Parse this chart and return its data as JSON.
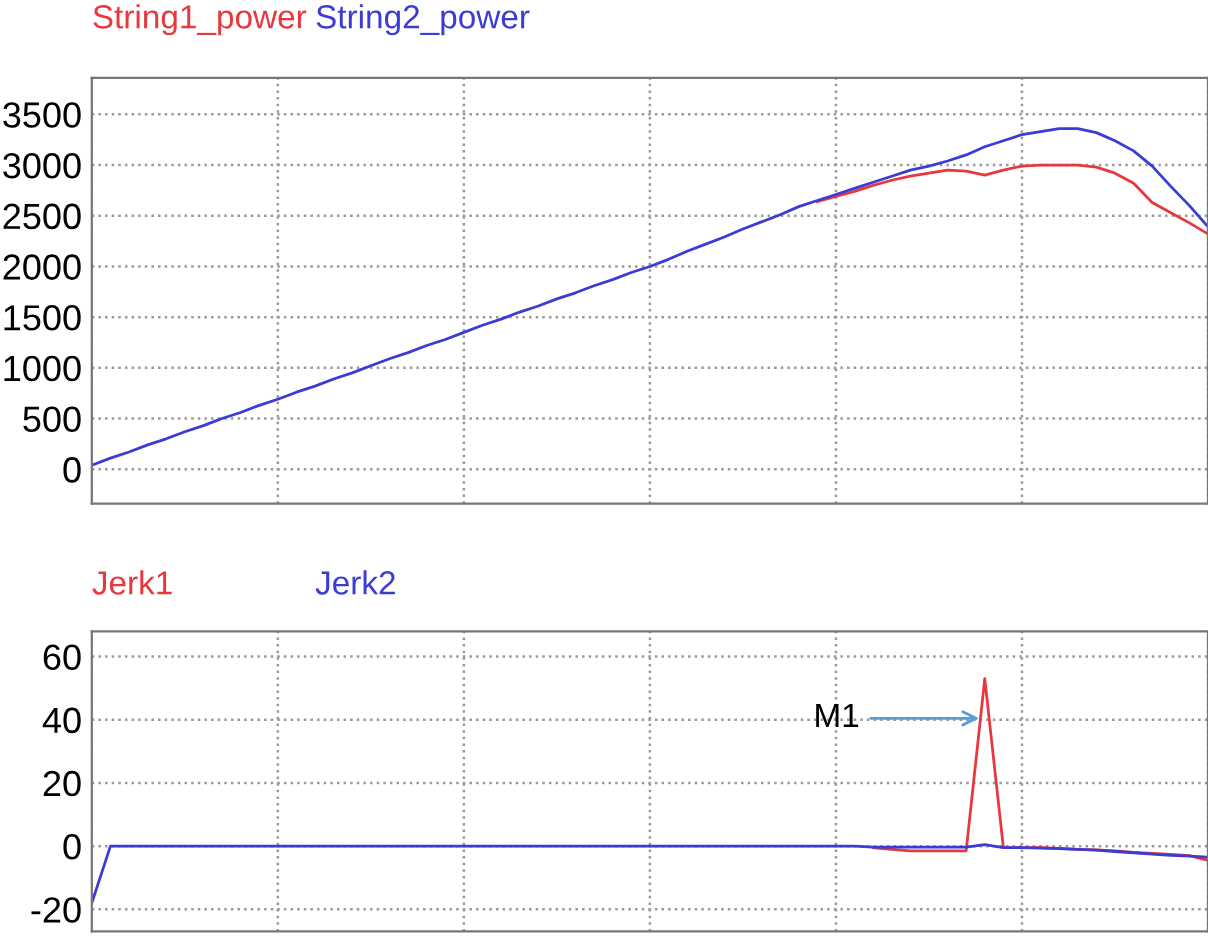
{
  "chart_data": [
    {
      "type": "line",
      "categories": [
        null,
        null,
        null,
        null,
        null,
        null,
        null,
        null,
        null,
        null,
        null,
        null,
        null,
        null,
        null,
        null,
        null,
        null,
        null,
        null,
        null,
        null,
        null,
        null,
        null,
        null,
        null,
        null,
        null,
        null,
        null,
        null,
        null,
        null,
        null,
        null,
        null,
        null,
        null,
        null,
        null,
        null,
        null,
        null,
        null,
        null,
        null,
        null,
        null,
        null,
        null,
        null,
        null,
        null,
        null,
        null,
        null,
        null,
        null,
        null,
        null
      ],
      "ylim": [
        -340,
        3860
      ],
      "yticks": [
        0,
        500,
        1000,
        1500,
        2000,
        2500,
        3000,
        3500
      ],
      "grid": true,
      "marker": "none",
      "line_style": "solid",
      "series": [
        {
          "name": "String1_power",
          "color": "#e8383d",
          "values": [
            null,
            null,
            null,
            null,
            null,
            null,
            null,
            null,
            null,
            null,
            null,
            null,
            null,
            null,
            null,
            null,
            null,
            null,
            null,
            null,
            null,
            null,
            null,
            null,
            null,
            null,
            null,
            null,
            null,
            null,
            null,
            null,
            null,
            null,
            null,
            null,
            null,
            null,
            null,
            2640,
            2690,
            2740,
            2800,
            2850,
            2890,
            2920,
            2950,
            2940,
            2900,
            2950,
            2990,
            3000,
            3000,
            3000,
            2980,
            2920,
            2820,
            2630,
            2530,
            2430,
            2320
          ]
        },
        {
          "name": "String2_power",
          "color": "#3b3bd6",
          "values": [
            40,
            110,
            170,
            240,
            300,
            370,
            430,
            500,
            560,
            630,
            690,
            760,
            820,
            890,
            950,
            1020,
            1090,
            1150,
            1220,
            1280,
            1350,
            1420,
            1480,
            1550,
            1610,
            1680,
            1740,
            1810,
            1870,
            1940,
            2000,
            2070,
            2150,
            2220,
            2290,
            2370,
            2440,
            2510,
            2590,
            2650,
            2710,
            2770,
            2830,
            2890,
            2950,
            2990,
            3040,
            3100,
            3180,
            3240,
            3300,
            3330,
            3360,
            3360,
            3320,
            3240,
            3140,
            2990,
            2790,
            2600,
            2390
          ]
        }
      ]
    },
    {
      "type": "line",
      "categories": [
        null,
        null,
        null,
        null,
        null,
        null,
        null,
        null,
        null,
        null,
        null,
        null,
        null,
        null,
        null,
        null,
        null,
        null,
        null,
        null,
        null,
        null,
        null,
        null,
        null,
        null,
        null,
        null,
        null,
        null,
        null,
        null,
        null,
        null,
        null,
        null,
        null,
        null,
        null,
        null,
        null,
        null,
        null,
        null,
        null,
        null,
        null,
        null,
        null,
        null,
        null,
        null,
        null,
        null,
        null,
        null,
        null,
        null,
        null,
        null,
        null
      ],
      "ylim": [
        -27,
        68
      ],
      "yticks": [
        -20,
        0,
        20,
        40,
        60
      ],
      "grid": true,
      "marker": "none",
      "line_style": "solid",
      "annotations": [
        "M1"
      ],
      "series": [
        {
          "name": "Jerk1",
          "color": "#e8383d",
          "values": [
            null,
            null,
            null,
            null,
            null,
            null,
            null,
            null,
            null,
            null,
            null,
            null,
            null,
            null,
            null,
            null,
            null,
            null,
            null,
            null,
            null,
            null,
            null,
            null,
            null,
            null,
            null,
            null,
            null,
            null,
            null,
            null,
            null,
            null,
            null,
            null,
            null,
            null,
            null,
            null,
            null,
            null,
            -0.5,
            -1,
            -1.5,
            -1.5,
            -1.5,
            -1.5,
            53,
            -0.5,
            -0.5,
            -0.5,
            -0.7,
            -1,
            -1.2,
            -1.5,
            -2,
            -2.3,
            -2.6,
            -3,
            -4.5
          ]
        },
        {
          "name": "Jerk2",
          "color": "#3b3bd6",
          "values": [
            -18,
            0,
            0,
            0,
            0,
            0,
            0,
            0,
            0,
            0,
            0,
            0,
            0,
            0,
            0,
            0,
            0,
            0,
            0,
            0,
            0,
            0,
            0,
            0,
            0,
            0,
            0,
            0,
            0,
            0,
            0,
            0,
            0,
            0,
            0,
            0,
            0,
            0,
            0,
            0,
            0,
            0,
            -0.3,
            -0.3,
            -0.3,
            -0.3,
            -0.3,
            -0.3,
            0.5,
            -0.5,
            -0.5,
            -0.6,
            -0.8,
            -1,
            -1.3,
            -1.7,
            -2.1,
            -2.5,
            -2.9,
            -3.2,
            -3.5
          ]
        }
      ]
    }
  ]
}
